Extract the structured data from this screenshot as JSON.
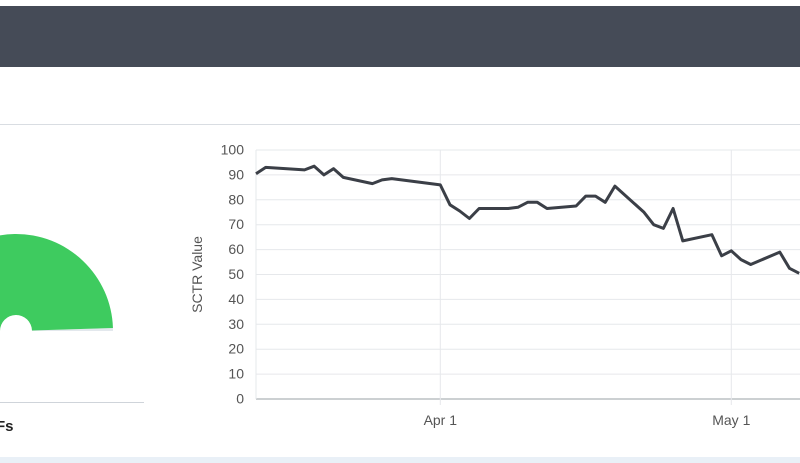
{
  "gauge": {
    "caption": "Fs",
    "value": 99,
    "max": 100,
    "track_color": "#e3e8ed",
    "fill_color": "#3ecb5f"
  },
  "chart_data": {
    "type": "line",
    "title": "",
    "xlabel": "",
    "ylabel": "SCTR Value",
    "ylim": [
      0,
      100
    ],
    "yticks": [
      0,
      10,
      20,
      30,
      40,
      50,
      60,
      70,
      80,
      90,
      100
    ],
    "xticks": [
      "Apr 1",
      "May 1"
    ],
    "grid": true,
    "line_color": "#3b3f47",
    "series": [
      {
        "x": [
          "2024-03-13",
          "2024-03-14",
          "2024-03-18",
          "2024-03-19",
          "2024-03-20",
          "2024-03-21",
          "2024-03-22",
          "2024-03-25",
          "2024-03-26",
          "2024-03-27",
          "2024-03-28",
          "2024-03-29",
          "2024-04-01",
          "2024-04-02",
          "2024-04-03",
          "2024-04-04",
          "2024-04-05",
          "2024-04-08",
          "2024-04-09",
          "2024-04-10",
          "2024-04-11",
          "2024-04-12",
          "2024-04-15",
          "2024-04-16",
          "2024-04-17",
          "2024-04-18",
          "2024-04-19",
          "2024-04-22",
          "2024-04-23",
          "2024-04-24",
          "2024-04-25",
          "2024-04-26",
          "2024-04-29",
          "2024-04-30",
          "2024-05-01",
          "2024-05-02",
          "2024-05-03",
          "2024-05-06",
          "2024-05-07",
          "2024-05-08"
        ],
        "values": [
          90.5,
          93,
          92,
          93.5,
          90,
          92.5,
          89,
          86.5,
          88,
          88.5,
          88,
          87.5,
          86,
          78,
          75.5,
          72.5,
          76.5,
          76.5,
          77,
          79,
          79,
          76.5,
          77.5,
          81.5,
          81.5,
          79,
          85.5,
          75,
          70,
          68.5,
          76.5,
          63.5,
          66,
          57.5,
          59.5,
          56,
          54,
          59,
          52.5,
          50.5
        ]
      }
    ]
  }
}
